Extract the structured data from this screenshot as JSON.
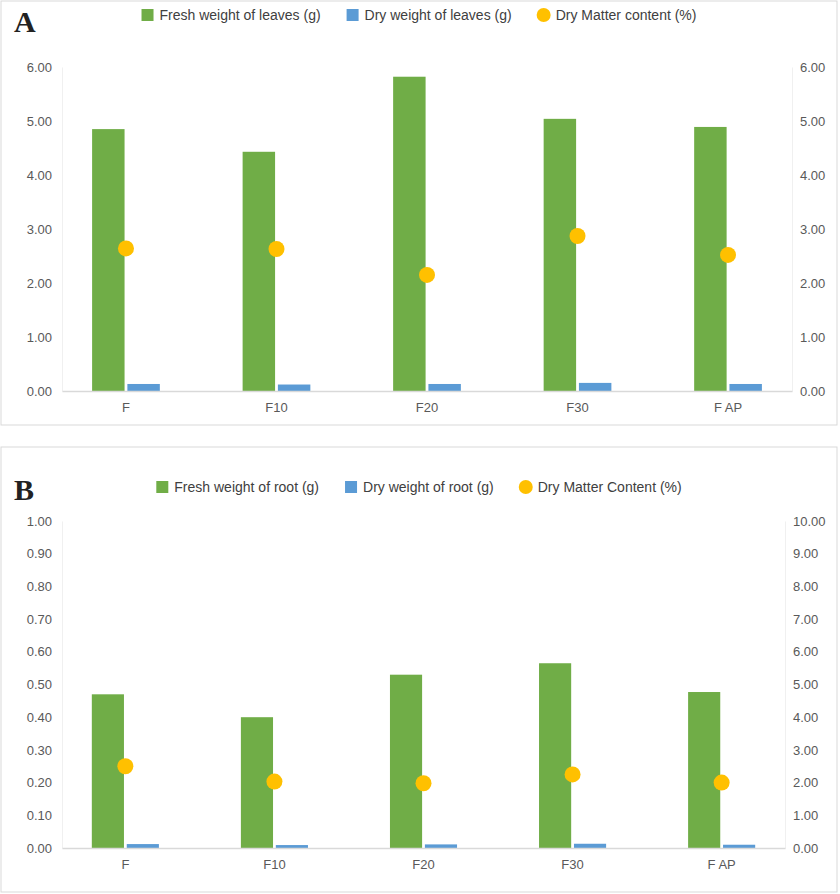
{
  "chart_data": [
    {
      "type": "bar",
      "title": "A",
      "categories": [
        "F",
        "F10",
        "F20",
        "F30",
        "F AP"
      ],
      "series": [
        {
          "name": "Fresh weight of leaves (g)",
          "color": "#70ad47",
          "values": [
            4.85,
            4.43,
            5.82,
            5.04,
            4.89
          ]
        },
        {
          "name": "Dry weight of leaves (g)",
          "color": "#5b9bd5",
          "values": [
            0.13,
            0.12,
            0.13,
            0.15,
            0.13
          ]
        },
        {
          "name": "Dry Matter content (%)",
          "color": "#ffc000",
          "type": "scatter",
          "marker": "circle",
          "axis": "y2",
          "values": [
            2.64,
            2.63,
            2.15,
            2.87,
            2.52
          ]
        }
      ],
      "ylim": [
        0,
        6
      ],
      "yticks": [
        {
          "value": 0,
          "label": "0.00"
        },
        {
          "value": 1,
          "label": "1.00"
        },
        {
          "value": 2,
          "label": "2.00"
        },
        {
          "value": 3,
          "label": "3.00"
        },
        {
          "value": 4,
          "label": "4.00"
        },
        {
          "value": 5,
          "label": "5.00"
        },
        {
          "value": 6,
          "label": "6.00"
        }
      ],
      "y2lim": [
        0,
        6
      ],
      "y2ticks": [
        {
          "value": 0,
          "label": "0.00"
        },
        {
          "value": 1,
          "label": "1.00"
        },
        {
          "value": 2,
          "label": "2.00"
        },
        {
          "value": 3,
          "label": "3.00"
        },
        {
          "value": 4,
          "label": "4.00"
        },
        {
          "value": 5,
          "label": "5.00"
        },
        {
          "value": 6,
          "label": "6.00"
        }
      ],
      "grid": false,
      "legend": "top"
    },
    {
      "type": "bar",
      "title": "B",
      "categories": [
        "F",
        "F10",
        "F20",
        "F30",
        "F AP"
      ],
      "series": [
        {
          "name": "Fresh weight of root (g)",
          "color": "#70ad47",
          "values": [
            0.47,
            0.4,
            0.53,
            0.565,
            0.477
          ]
        },
        {
          "name": "Dry weight of root (g)",
          "color": "#5b9bd5",
          "values": [
            0.012,
            0.009,
            0.011,
            0.013,
            0.01
          ]
        },
        {
          "name": "Dry Matter Content (%)",
          "color": "#ffc000",
          "type": "scatter",
          "marker": "circle",
          "axis": "y2",
          "values": [
            2.5,
            2.03,
            1.98,
            2.25,
            2.0
          ]
        }
      ],
      "ylim": [
        0,
        1
      ],
      "yticks": [
        {
          "value": 0,
          "label": "0.00"
        },
        {
          "value": 0.1,
          "label": "0.10"
        },
        {
          "value": 0.2,
          "label": "0.20"
        },
        {
          "value": 0.3,
          "label": "0.30"
        },
        {
          "value": 0.4,
          "label": "0.40"
        },
        {
          "value": 0.5,
          "label": "0.50"
        },
        {
          "value": 0.6,
          "label": "0.60"
        },
        {
          "value": 0.7,
          "label": "0.70"
        },
        {
          "value": 0.8,
          "label": "0.80"
        },
        {
          "value": 0.9,
          "label": "0.90"
        },
        {
          "value": 1,
          "label": "1.00"
        }
      ],
      "y2lim": [
        0,
        10
      ],
      "y2ticks": [
        {
          "value": 0,
          "label": "0.00"
        },
        {
          "value": 1,
          "label": "1.00"
        },
        {
          "value": 2,
          "label": "2.00"
        },
        {
          "value": 3,
          "label": "3.00"
        },
        {
          "value": 4,
          "label": "4.00"
        },
        {
          "value": 5,
          "label": "5.00"
        },
        {
          "value": 6,
          "label": "6.00"
        },
        {
          "value": 7,
          "label": "7.00"
        },
        {
          "value": 8,
          "label": "8.00"
        },
        {
          "value": 9,
          "label": "9.00"
        },
        {
          "value": 10,
          "label": "10.00"
        }
      ],
      "grid": false,
      "legend": "top"
    }
  ]
}
